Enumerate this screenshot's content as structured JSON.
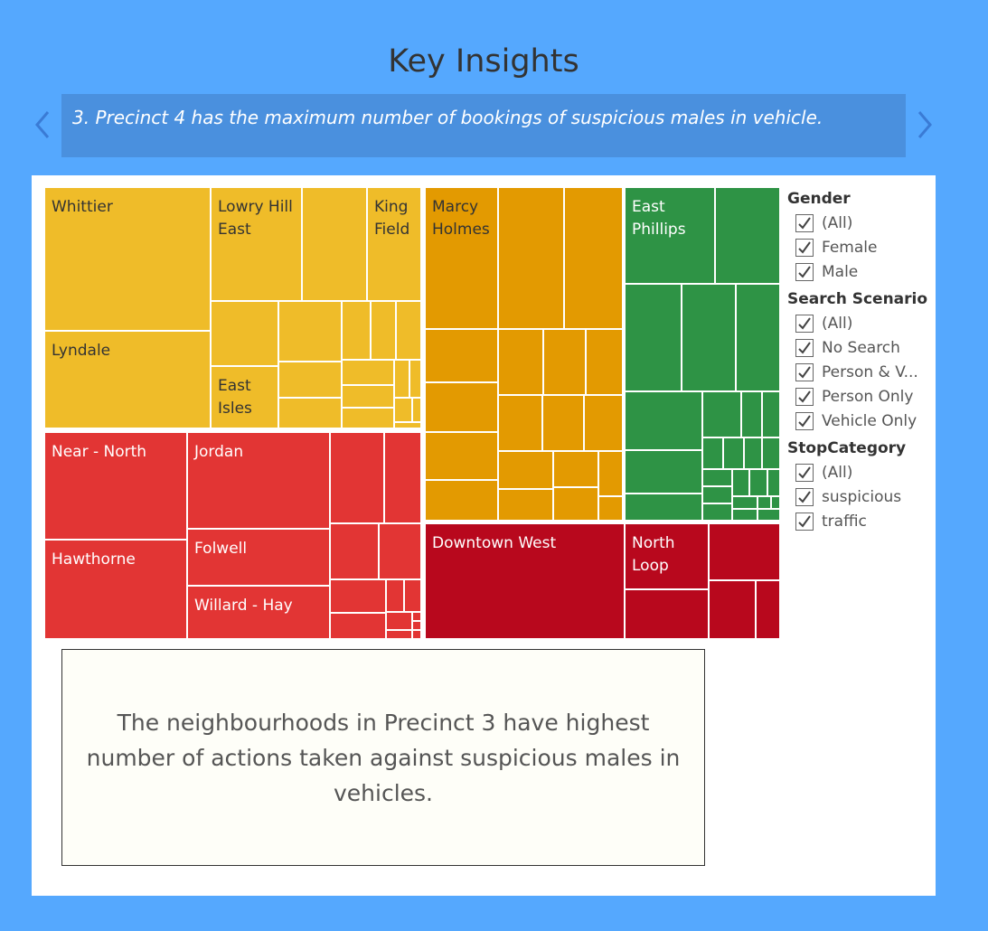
{
  "dashboard": {
    "title": "Key Insights",
    "caption": "3. Precinct 4 has the maximum number of bookings of suspicious males in vehicle.",
    "insight": "The neighbourhoods in Precinct 3 have highest number of actions taken against suspicious males in vehicles."
  },
  "colors": {
    "background": "#55a8fe",
    "caption_box": "#4a90de",
    "precinct_yellow": "#efbc29",
    "precinct_orange": "#e39a01",
    "precinct_green": "#2e9345",
    "precinct_red": "#e23534",
    "precinct_darkred": "#b8081d"
  },
  "icons": {
    "prev": "chevron-left-icon",
    "next": "chevron-right-icon",
    "check": "checkmark-icon"
  },
  "treemap": {
    "labels": {
      "whittier": "Whittier",
      "lowry_hill_east": "Lowry Hill East",
      "king_field": "King Field",
      "lyndale": "Lyndale",
      "east_isles": "East Isles",
      "marcy_holmes": "Marcy Holmes",
      "east_phillips": "East Phillips",
      "near_north": "Near - North",
      "jordan": "Jordan",
      "hawthorne": "Hawthorne",
      "folwell": "Folwell",
      "willard_hay": "Willard - Hay",
      "downtown_west": "Downtown West",
      "north_loop": "North Loop"
    }
  },
  "filters": [
    {
      "title": "Gender",
      "options": [
        "(All)",
        "Female",
        "Male"
      ]
    },
    {
      "title": "Search Scenario",
      "options": [
        "(All)",
        "No Search",
        "Person & V...",
        "Person Only",
        "Vehicle Only"
      ]
    },
    {
      "title": "StopCategory",
      "options": [
        "(All)",
        "suspicious",
        "traffic"
      ]
    }
  ]
}
